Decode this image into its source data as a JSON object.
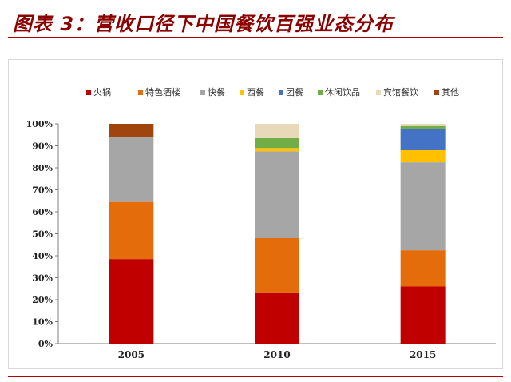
{
  "title": "图表 3：营收口径下中国餐饮百强业态分布",
  "chart_data": {
    "type": "bar",
    "stacked": true,
    "categories": [
      "2005",
      "2010",
      "2015"
    ],
    "ylim": [
      0,
      100
    ],
    "yticks": [
      "0%",
      "10%",
      "20%",
      "30%",
      "40%",
      "50%",
      "60%",
      "70%",
      "80%",
      "90%",
      "100%"
    ],
    "legend_position": "top",
    "grid": false,
    "series": [
      {
        "name": "火锅",
        "color": "#c00000",
        "values": [
          38.5,
          23.0,
          26.0
        ]
      },
      {
        "name": "特色酒楼",
        "color": "#e46c0a",
        "values": [
          26.0,
          25.0,
          16.5
        ]
      },
      {
        "name": "快餐",
        "color": "#a6a6a6",
        "values": [
          29.5,
          39.5,
          40.0
        ]
      },
      {
        "name": "西餐",
        "color": "#ffc000",
        "values": [
          0,
          1.5,
          5.5
        ]
      },
      {
        "name": "团餐",
        "color": "#4472c4",
        "values": [
          0,
          0,
          9.5
        ]
      },
      {
        "name": "休闲饮品",
        "color": "#70ad47",
        "values": [
          0,
          4.5,
          1.5
        ]
      },
      {
        "name": "宾馆餐饮",
        "color": "#e8d9b8",
        "values": [
          0,
          6.5,
          1.0
        ]
      },
      {
        "name": "其他",
        "color": "#a0450e",
        "values": [
          6.0,
          0,
          0
        ]
      }
    ]
  }
}
